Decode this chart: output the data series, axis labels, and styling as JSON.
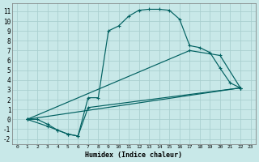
{
  "xlabel": "Humidex (Indice chaleur)",
  "bg_color": "#c8e8e8",
  "grid_color": "#aacfcf",
  "line_color": "#006060",
  "xlim": [
    -0.5,
    23.5
  ],
  "ylim": [
    -2.5,
    11.8
  ],
  "xticks": [
    0,
    1,
    2,
    3,
    4,
    5,
    6,
    7,
    8,
    9,
    10,
    11,
    12,
    13,
    14,
    15,
    16,
    17,
    18,
    19,
    20,
    21,
    22,
    23
  ],
  "yticks": [
    -2,
    -1,
    0,
    1,
    2,
    3,
    4,
    5,
    6,
    7,
    8,
    9,
    10,
    11
  ],
  "line1_x": [
    1,
    2,
    3,
    4,
    5,
    6,
    7,
    8,
    9,
    10,
    11,
    12,
    13,
    14,
    15,
    16,
    17,
    18,
    19,
    20,
    21,
    22
  ],
  "line1_y": [
    0,
    0,
    -0.5,
    -1.1,
    -1.5,
    -1.7,
    2.2,
    2.2,
    9.0,
    9.5,
    10.5,
    11.1,
    11.2,
    11.2,
    11.1,
    10.2,
    7.5,
    7.3,
    6.8,
    5.2,
    3.7,
    3.2
  ],
  "line2_x": [
    1,
    3,
    4,
    5,
    6,
    7,
    22
  ],
  "line2_y": [
    0,
    -0.7,
    -1.1,
    -1.5,
    -1.7,
    1.2,
    3.2
  ],
  "line3_x": [
    1,
    22
  ],
  "line3_y": [
    0,
    3.2
  ],
  "line4_x": [
    1,
    17,
    20,
    22
  ],
  "line4_y": [
    0,
    7.0,
    6.5,
    3.2
  ]
}
